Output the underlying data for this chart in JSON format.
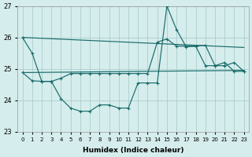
{
  "xlabel": "Humidex (Indice chaleur)",
  "xlim": [
    -0.5,
    23.5
  ],
  "ylim": [
    23,
    27
  ],
  "yticks": [
    23,
    24,
    25,
    26,
    27
  ],
  "xtick_labels": [
    "0",
    "1",
    "2",
    "3",
    "4",
    "5",
    "6",
    "7",
    "8",
    "9",
    "10",
    "11",
    "12",
    "13",
    "14",
    "15",
    "16",
    "17",
    "18",
    "19",
    "20",
    "21",
    "22",
    "23"
  ],
  "bg_color": "#d5edec",
  "grid_color": "#aacfcc",
  "line_color": "#1a6b6b",
  "line1_x": [
    0,
    1,
    2,
    3,
    4,
    5,
    6,
    7,
    8,
    9,
    10,
    11,
    12,
    13,
    14,
    15,
    16,
    17,
    18,
    19,
    20,
    21,
    22,
    23
  ],
  "line1_y": [
    26.0,
    25.5,
    24.6,
    24.6,
    24.05,
    23.75,
    23.65,
    23.65,
    23.85,
    23.85,
    23.75,
    23.75,
    24.55,
    24.55,
    24.55,
    27.0,
    26.25,
    25.7,
    25.72,
    25.75,
    25.1,
    25.1,
    25.2,
    24.92
  ],
  "line2_x": [
    0,
    1,
    2,
    3,
    4,
    5,
    6,
    7,
    8,
    9,
    10,
    11,
    12,
    13,
    14,
    15,
    16,
    17,
    18,
    19,
    20,
    21,
    22,
    23
  ],
  "line2_y": [
    24.88,
    24.62,
    24.6,
    24.6,
    24.7,
    24.85,
    24.85,
    24.85,
    24.85,
    24.85,
    24.85,
    24.85,
    24.85,
    24.85,
    25.85,
    25.95,
    25.72,
    25.72,
    25.72,
    25.1,
    25.1,
    25.2,
    24.92,
    24.92
  ],
  "line3_x": [
    0,
    23
  ],
  "line3_y": [
    26.0,
    25.68
  ],
  "line4_x": [
    0,
    23
  ],
  "line4_y": [
    24.88,
    24.95
  ]
}
